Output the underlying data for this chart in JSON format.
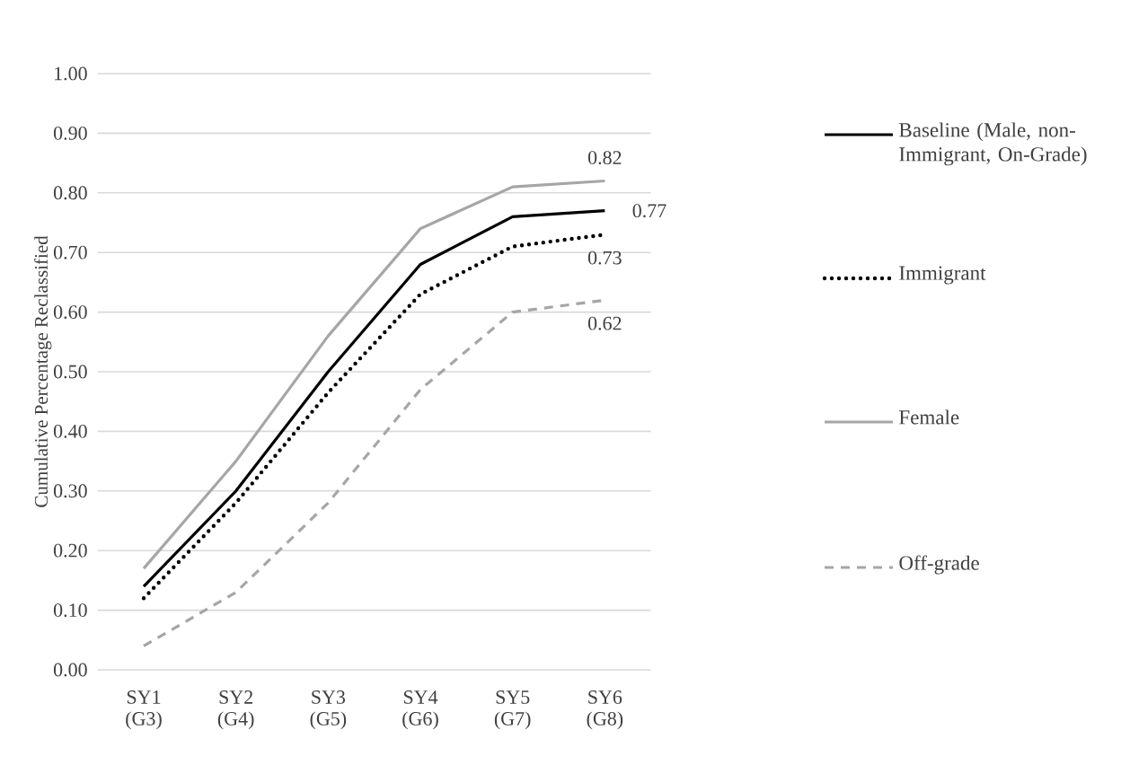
{
  "chart_data": {
    "type": "line",
    "ylabel": "Cumulative Percentage Reclassified",
    "categories": [
      "SY1 (G3)",
      "SY2 (G4)",
      "SY3 (G5)",
      "SY4 (G6)",
      "SY5 (G7)",
      "SY6 (G8)"
    ],
    "ylim": [
      0,
      1
    ],
    "yticks": [
      {
        "value": 0,
        "label": "0.00"
      },
      {
        "value": 0.1,
        "label": "0.10"
      },
      {
        "value": 0.2,
        "label": "0.20"
      },
      {
        "value": 0.3,
        "label": "0.30"
      },
      {
        "value": 0.4,
        "label": "0.40"
      },
      {
        "value": 0.5,
        "label": "0.50"
      },
      {
        "value": 0.6,
        "label": "0.60"
      },
      {
        "value": 0.7,
        "label": "0.70"
      },
      {
        "value": 0.8,
        "label": "0.80"
      },
      {
        "value": 0.9,
        "label": "0.90"
      },
      {
        "value": 1,
        "label": "1.00"
      }
    ],
    "grid": "y",
    "legend": "right",
    "marker": "none",
    "series": [
      {
        "name": "Baseline (Male, non-Immigrant, On-Grade)",
        "color": "#000000",
        "line_style": "solid",
        "values": [
          0.14,
          0.3,
          0.5,
          0.68,
          0.76,
          0.77
        ],
        "value_labels": [
          null,
          null,
          null,
          null,
          null,
          "0.77"
        ]
      },
      {
        "name": "Immigrant",
        "color": "#000000",
        "line_style": "dotted",
        "values": [
          0.12,
          0.28,
          0.465,
          0.63,
          0.71,
          0.73
        ],
        "value_labels": [
          null,
          null,
          null,
          null,
          null,
          "0.73"
        ]
      },
      {
        "name": "Female",
        "color": "#a6a6a6",
        "line_style": "solid",
        "values": [
          0.17,
          0.35,
          0.56,
          0.74,
          0.81,
          0.82
        ],
        "value_labels": [
          null,
          null,
          null,
          null,
          null,
          "0.82"
        ]
      },
      {
        "name": "Off-grade",
        "color": "#a6a6a6",
        "line_style": "dashed",
        "values": [
          0.04,
          0.13,
          0.28,
          0.47,
          0.6,
          0.62
        ],
        "value_labels": [
          null,
          null,
          null,
          null,
          null,
          "0.62"
        ]
      }
    ]
  }
}
